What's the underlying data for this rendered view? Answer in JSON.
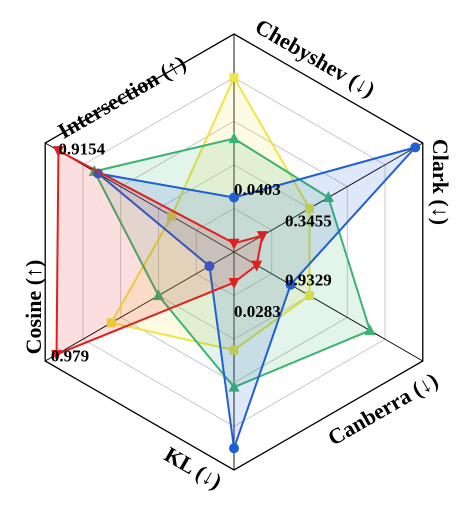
{
  "chart_data": {
    "type": "radar",
    "axes": [
      {
        "name": "Chebyshev (↓)"
      },
      {
        "name": "Clark (↓)"
      },
      {
        "name": "Canberra (↓)"
      },
      {
        "name": "KL (↓)"
      },
      {
        "name": "Cosine (↑)"
      },
      {
        "name": "Intersection (↑)"
      }
    ],
    "scale": {
      "min": 0,
      "max": 1,
      "rings": 5,
      "grid": true
    },
    "series": [
      {
        "color": "#f0e442",
        "marker": "square",
        "values": [
          0.8,
          0.4,
          0.4,
          0.45,
          0.65,
          0.33
        ]
      },
      {
        "color": "#3cb371",
        "marker": "triangle",
        "values": [
          0.52,
          0.5,
          0.72,
          0.62,
          0.4,
          0.74
        ]
      },
      {
        "color": "#1f5fd6",
        "marker": "circle",
        "values": [
          0.25,
          0.96,
          0.3,
          0.9,
          0.13,
          0.72
        ]
      },
      {
        "color": "#e01f1f",
        "marker": "triangle-down",
        "values": [
          0.04,
          0.15,
          0.12,
          0.14,
          0.94,
          0.93
        ]
      }
    ],
    "annotations": [
      {
        "text": "0.0403",
        "axis": 0,
        "r": 0.28
      },
      {
        "text": "0.3455",
        "axis": 1,
        "r": 0.27
      },
      {
        "text": "0.9329",
        "axis": 2,
        "r": 0.27
      },
      {
        "text": "0.0283",
        "axis": 3,
        "r": 0.28
      },
      {
        "text": "0.979",
        "axis": 4,
        "r": 0.97
      },
      {
        "text": "0.9154",
        "axis": 5,
        "r": 0.93
      }
    ]
  }
}
